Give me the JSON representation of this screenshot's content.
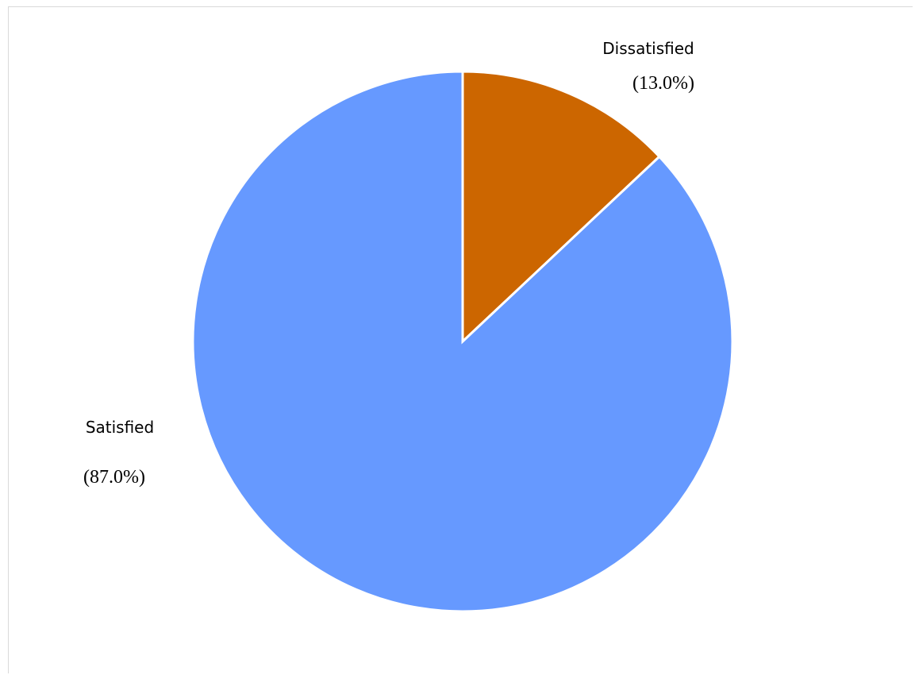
{
  "chart_data": {
    "type": "pie",
    "slices": [
      {
        "label": "Dissatisfied",
        "percent_label": "(13.0%)",
        "value": 13.0,
        "color": "#CC6600"
      },
      {
        "label": "Satisfied",
        "percent_label": "(87.0%)",
        "value": 87.0,
        "color": "#6699FF"
      }
    ],
    "start": "12 o'clock",
    "direction": "clockwise",
    "slice_border_color": "#ffffff",
    "legend": "none"
  }
}
